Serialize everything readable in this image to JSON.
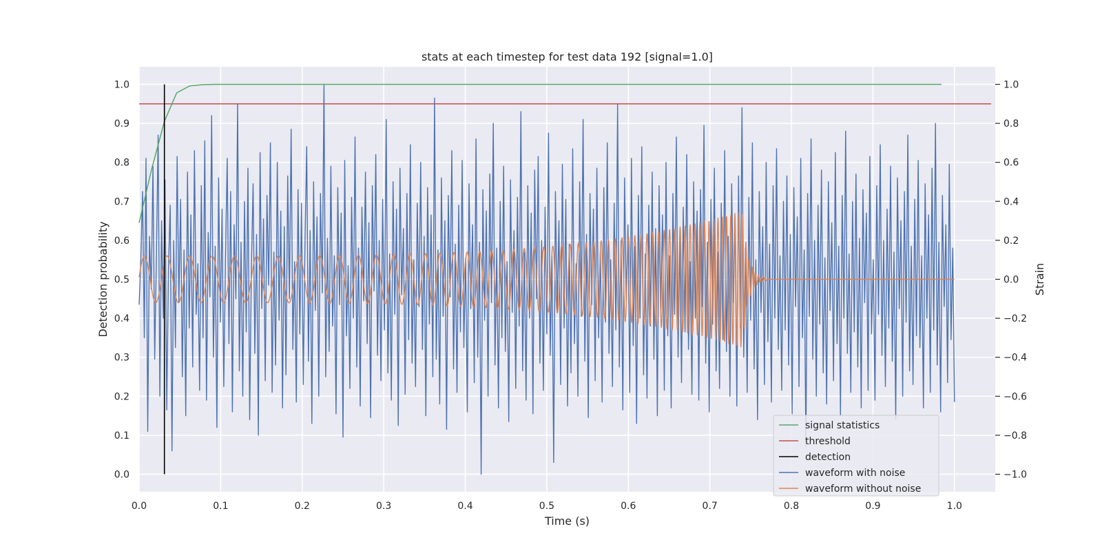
{
  "chart_data": {
    "type": "line",
    "title": "stats at each timestep for test data 192 [signal=1.0]",
    "xlabel": "Time (s)",
    "ylabel": "Detection probability",
    "y2label": "Strain",
    "xlim": [
      0.0,
      1.05
    ],
    "ylim": [
      -0.045,
      1.045
    ],
    "y2lim": [
      -1.09,
      1.09
    ],
    "xticks": [
      0.0,
      0.1,
      0.2,
      0.3,
      0.4,
      0.5,
      0.6,
      0.7,
      0.8,
      0.9,
      1.0
    ],
    "xtick_labels": [
      "0.0",
      "0.1",
      "0.2",
      "0.3",
      "0.4",
      "0.5",
      "0.6",
      "0.7",
      "0.8",
      "0.9",
      "1.0"
    ],
    "yticks": [
      0.0,
      0.1,
      0.2,
      0.3,
      0.4,
      0.5,
      0.6,
      0.7,
      0.8,
      0.9,
      1.0
    ],
    "ytick_labels": [
      "0.0",
      "0.1",
      "0.2",
      "0.3",
      "0.4",
      "0.5",
      "0.6",
      "0.7",
      "0.8",
      "0.9",
      "1.0"
    ],
    "y2ticks": [
      -1.0,
      -0.8,
      -0.6,
      -0.4,
      -0.2,
      0.0,
      0.2,
      0.4,
      0.6,
      0.8,
      1.0
    ],
    "y2tick_labels": [
      "−1.0",
      "−0.8",
      "−0.6",
      "−0.4",
      "−0.2",
      "0.0",
      "0.2",
      "0.4",
      "0.6",
      "0.8",
      "1.0"
    ],
    "grid": true,
    "legend_position": "lower-right",
    "series": [
      {
        "name": "signal statistics",
        "axis": "left",
        "color": "#55a868",
        "x": [
          0.0,
          0.015,
          0.031,
          0.046,
          0.062,
          0.077,
          0.092,
          0.2,
          0.4,
          0.6,
          0.8,
          0.984
        ],
        "y": [
          0.645,
          0.78,
          0.905,
          0.978,
          0.996,
          0.999,
          1.0,
          1.0,
          1.0,
          1.0,
          1.0,
          1.0
        ]
      },
      {
        "name": "threshold",
        "axis": "left",
        "color": "#c44e52",
        "x": [
          0.0,
          1.045
        ],
        "y": [
          0.95,
          0.95
        ]
      },
      {
        "name": "detection",
        "axis": "left",
        "color": "#000000",
        "x": [
          0.031,
          0.031
        ],
        "y": [
          0.0,
          1.0
        ]
      },
      {
        "name": "waveform with noise",
        "axis": "right",
        "color": "#4c72b0",
        "x_range": [
          0.0,
          1.0
        ],
        "y": [
          -0.13,
          0.1,
          0.45,
          -0.3,
          0.62,
          -0.78,
          0.22,
          -0.05,
          0.58,
          -0.41,
          0.12,
          0.74,
          -0.6,
          0.3,
          -0.2,
          0.51,
          -0.67,
          0.05,
          0.38,
          -0.88,
          0.2,
          -0.35,
          0.63,
          -0.12,
          0.41,
          -0.5,
          0.15,
          -0.7,
          0.55,
          -0.25,
          0.33,
          -0.45,
          0.66,
          -0.18,
          0.08,
          -0.57,
          0.48,
          -0.3,
          0.71,
          -0.62,
          0.24,
          -0.09,
          0.84,
          -0.4,
          0.17,
          -0.76,
          0.52,
          -0.22,
          0.36,
          -0.55,
          0.11,
          0.62,
          -0.33,
          0.45,
          -0.68,
          0.28,
          -0.1,
          0.9,
          -0.47,
          0.19,
          -0.6,
          0.4,
          -0.27,
          0.57,
          -0.72,
          0.06,
          0.49,
          -0.38,
          0.23,
          -0.8,
          0.65,
          -0.15,
          0.31,
          -0.52,
          0.43,
          -0.03,
          0.7,
          -0.58,
          0.14,
          -0.44,
          0.6,
          -0.21,
          0.35,
          -0.66,
          0.27,
          -0.49,
          0.53,
          -0.1,
          0.77,
          -0.36,
          0.09,
          -0.63,
          0.46,
          -0.28,
          0.39,
          -0.54,
          0.18,
          0.68,
          -0.42,
          0.25,
          -0.74,
          0.5,
          -0.16,
          0.32,
          -0.6,
          0.44,
          -0.07,
          1.0,
          -0.5,
          0.21,
          -0.37,
          0.58,
          -0.24,
          0.12,
          -0.69,
          0.47,
          -0.13,
          0.34,
          -0.81,
          0.61,
          -0.29,
          0.07,
          -0.56,
          0.42,
          -0.2,
          0.73,
          -0.45,
          0.16,
          -0.65,
          0.37,
          -0.11,
          0.55,
          -0.33,
          0.29,
          -0.71,
          0.48,
          -0.06,
          0.64,
          -0.39,
          0.2,
          -0.52,
          0.41,
          -0.26,
          0.82,
          -0.48,
          0.13,
          -0.62,
          0.5,
          -0.18,
          0.36,
          -0.75,
          0.57,
          -0.08,
          0.26,
          -0.59,
          0.44,
          -0.31,
          0.69,
          -0.43,
          0.1,
          -0.55,
          0.39,
          -0.14,
          0.6,
          -0.36,
          0.22,
          -0.7,
          0.47,
          -0.23,
          0.33,
          -0.5,
          0.93,
          -0.41,
          0.15,
          -0.64,
          0.52,
          -0.19,
          0.3,
          -0.77,
          0.43,
          -0.09,
          0.66,
          -0.46,
          0.18,
          -0.58,
          0.38,
          -0.27,
          0.61,
          -0.35,
          0.11,
          -0.68,
          0.49,
          -0.15,
          0.28,
          -0.53,
          0.72,
          -0.4,
          0.19,
          -1.0,
          0.46,
          -0.21,
          0.35,
          -0.6,
          0.54,
          -0.12,
          0.8,
          -0.44,
          0.16,
          -0.66,
          0.4,
          -0.3,
          0.58,
          -0.37,
          0.09,
          -0.73,
          0.51,
          -0.17,
          0.25,
          -0.56,
          0.42,
          -0.24,
          0.86,
          -0.47,
          0.14,
          -0.62,
          0.48,
          -0.2,
          0.34,
          -0.69,
          0.56,
          -0.1,
          0.63,
          -0.43,
          0.2,
          -0.57,
          0.37,
          -0.28,
          0.75,
          -0.39,
          0.12,
          -0.94,
          0.45,
          -0.16,
          0.3,
          -0.54,
          0.59,
          -0.25,
          0.41,
          -0.65,
          0.18,
          -0.48,
          0.67,
          -0.33,
          0.08,
          -0.6,
          0.5,
          -0.19,
          0.82,
          -0.42,
          0.23,
          -0.71,
          0.44,
          -0.13,
          0.36,
          -0.52,
          0.57,
          -0.3,
          0.15,
          -0.63,
          0.47,
          -0.22,
          0.7,
          -0.38,
          0.1,
          -0.55,
          0.39,
          -0.26,
          0.9,
          -0.45,
          0.2,
          -0.67,
          0.52,
          -0.11,
          0.28,
          -0.58,
          0.62,
          -0.34,
          0.17,
          -0.74,
          0.43,
          -0.2,
          0.68,
          -0.49,
          0.13,
          -0.61,
          0.38,
          -0.24,
          0.55,
          -0.41,
          0.26,
          -0.7,
          0.48,
          -0.15,
          0.33,
          -0.57,
          0.6,
          -0.29,
          0.12,
          -0.66,
          0.44,
          -0.18,
          0.73,
          -0.4,
          0.21,
          -0.53,
          0.37,
          -0.27,
          0.64,
          -0.36,
          0.09,
          -0.59,
          0.5,
          -0.2,
          0.35,
          -0.62,
          0.46,
          -0.14,
          0.79,
          -0.43,
          0.19,
          -0.68,
          0.41,
          -0.23,
          0.57,
          -0.47,
          0.14,
          -0.56,
          0.39,
          -0.31,
          0.66,
          -0.37,
          0.22,
          -0.6,
          0.49,
          -0.12,
          0.31,
          -0.65,
          0.53,
          -0.25,
          0.88,
          -0.4,
          0.16,
          -0.58,
          0.42,
          -0.21,
          0.7,
          -0.46,
          0.1,
          -0.72,
          0.45,
          -0.17,
          0.27,
          -0.54,
          0.6,
          -0.32,
          0.18,
          -0.63,
          0.48,
          -0.2,
          0.67,
          -0.36,
          0.12,
          -0.57,
          0.4,
          -0.26,
          0.53,
          -0.44,
          0.23,
          -0.69,
          0.47,
          -0.14,
          0.32,
          -0.55,
          0.62,
          -0.3,
          0.15,
          -0.86,
          0.44,
          -0.19,
          0.72,
          -0.41,
          0.2,
          -0.6,
          0.38,
          -0.23,
          0.56,
          -0.48,
          0.11,
          -0.64,
          0.5,
          -0.16,
          0.29,
          -0.52,
          0.65,
          -0.33,
          0.17,
          -0.7,
          0.43,
          -0.2,
          0.76,
          -0.38,
          0.13,
          -0.58,
          0.4,
          -0.27,
          0.54,
          -0.45,
          0.21,
          -0.66,
          0.46,
          -0.12,
          0.34,
          -0.57,
          0.63,
          -0.28,
          0.1,
          -0.62,
          0.48,
          -0.18,
          0.69,
          -0.39,
          0.2,
          -0.55,
          0.36,
          -0.25,
          0.58,
          -0.42,
          0.14,
          -0.72,
          0.52,
          -0.15,
          0.3,
          -0.6,
          0.45,
          -0.22,
          0.74,
          -0.47,
          0.17,
          -0.54,
          0.41,
          -0.29,
          0.61,
          -0.35,
          0.12,
          -0.66,
          0.49,
          -0.2,
          0.33,
          -0.58,
          0.57,
          -0.26,
          0.8,
          -0.44,
          0.19,
          -0.68,
          0.43,
          -0.14,
          0.28,
          -0.53,
          0.59,
          -0.31,
          0.16,
          -0.63
        ]
      },
      {
        "name": "waveform without noise",
        "axis": "right",
        "color": "#dd8452",
        "description_of_shape": "chirp",
        "x_range": [
          0.0,
          1.0
        ],
        "amplitude_start": 0.12,
        "amplitude_peak": 0.35,
        "t_merger": 0.74,
        "t_ringdown_end": 0.77
      }
    ],
    "legend": [
      "signal statistics",
      "threshold",
      "detection",
      "waveform with noise",
      "waveform without noise"
    ]
  }
}
